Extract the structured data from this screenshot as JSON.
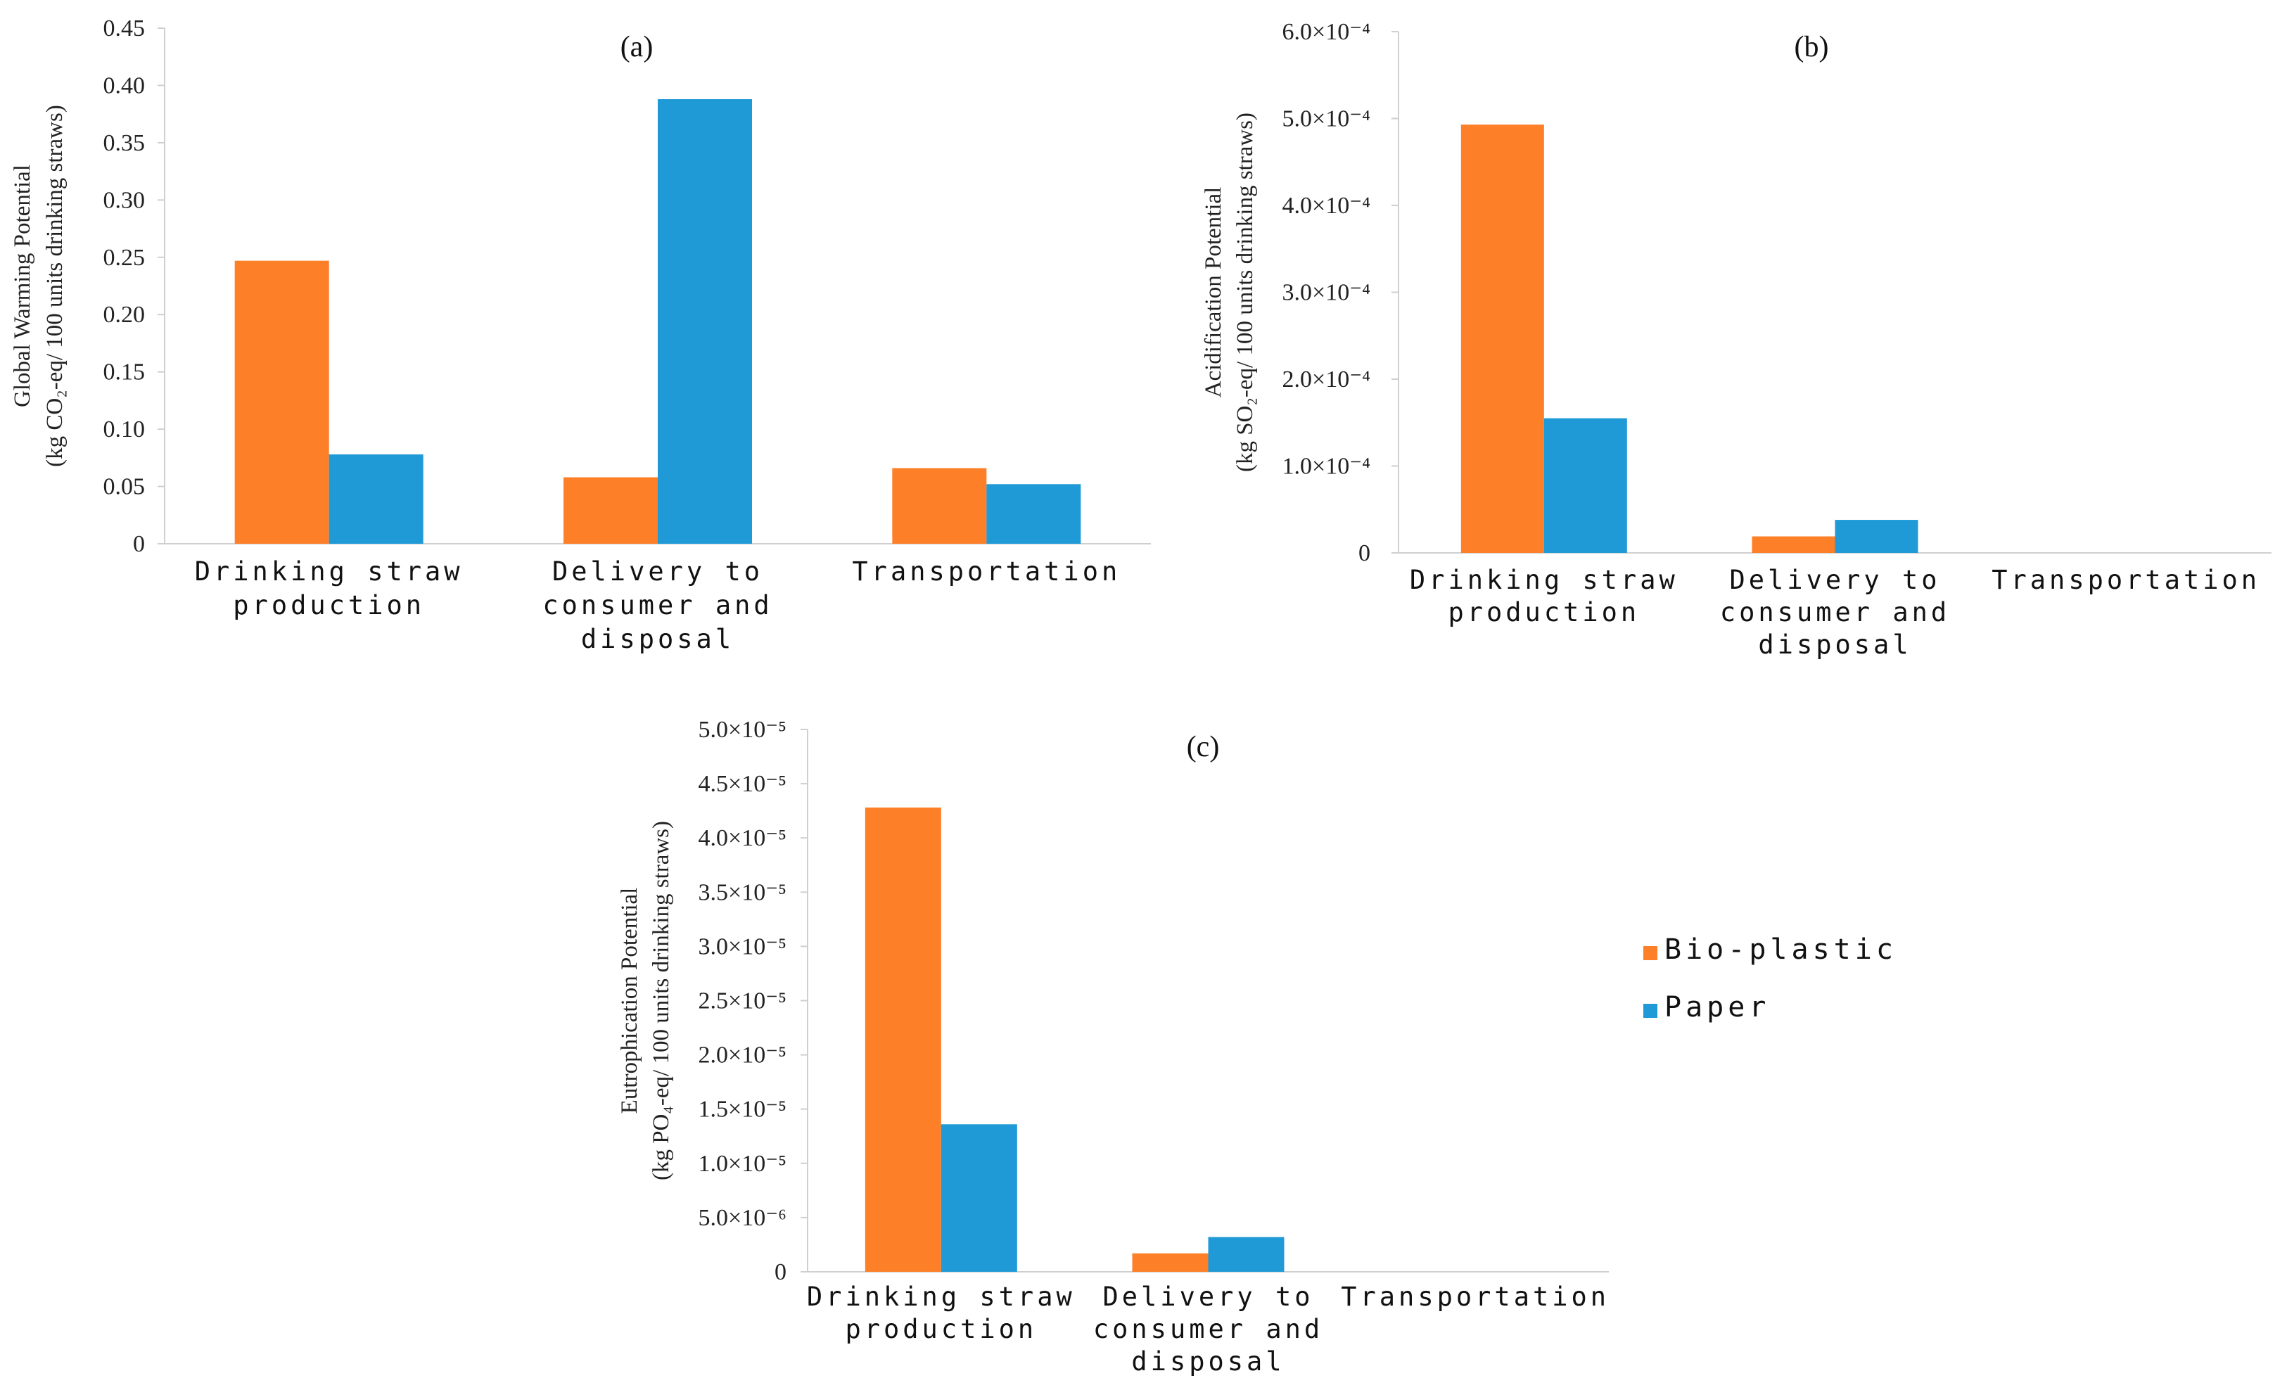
{
  "colors": {
    "bio_plastic": "#fd7f28",
    "paper": "#1f9ad7"
  },
  "legend": {
    "items": [
      {
        "label": "Bio-plastic",
        "color": "#fd7f28"
      },
      {
        "label": "Paper",
        "color": "#1f9ad7"
      }
    ]
  },
  "chart_data": [
    {
      "type": "bar",
      "title": "(a)",
      "ylabel_line1": "Global Warming Potential",
      "ylabel_line2": "(kg CO₂-eq/ 100 units drinking straws)",
      "categories": [
        [
          "Drinking straw",
          "production"
        ],
        [
          "Delivery to",
          "consumer and",
          "disposal"
        ],
        [
          "Transportation"
        ]
      ],
      "series": [
        {
          "name": "Bio-plastic",
          "values": [
            0.247,
            0.058,
            0.066
          ]
        },
        {
          "name": "Paper",
          "values": [
            0.078,
            0.388,
            0.052
          ]
        }
      ],
      "ylim": [
        0,
        0.45
      ],
      "yticks": [
        0,
        0.05,
        0.1,
        0.15,
        0.2,
        0.25,
        0.3,
        0.35,
        0.4,
        0.45
      ],
      "ytick_labels": [
        "0",
        "0.05",
        "0.10",
        "0.15",
        "0.20",
        "0.25",
        "0.30",
        "0.35",
        "0.40",
        "0.45"
      ]
    },
    {
      "type": "bar",
      "title": "(b)",
      "ylabel_line1": "Acidification Potential",
      "ylabel_line2": "(kg SO₂-eq/ 100 units drinking straws)",
      "categories": [
        [
          "Drinking straw",
          "production"
        ],
        [
          "Delivery to",
          "consumer and",
          "disposal"
        ],
        [
          "Transportation"
        ]
      ],
      "series": [
        {
          "name": "Bio-plastic",
          "values": [
            0.000493,
            1.9e-05,
            0
          ]
        },
        {
          "name": "Paper",
          "values": [
            0.000155,
            3.8e-05,
            0
          ]
        }
      ],
      "ylim": [
        0,
        0.0006
      ],
      "yticks": [
        0,
        0.0001,
        0.0002,
        0.0003,
        0.0004,
        0.0005,
        0.0006
      ],
      "ytick_labels": [
        "0",
        "1.0×10⁻⁴",
        "2.0×10⁻⁴",
        "3.0×10⁻⁴",
        "4.0×10⁻⁴",
        "5.0×10⁻⁴",
        "6.0×10⁻⁴"
      ]
    },
    {
      "type": "bar",
      "title": "(c)",
      "ylabel_line1": "Eutrophication Potential",
      "ylabel_line2": "(kg PO₄-eq/ 100 units drinking straws)",
      "categories": [
        [
          "Drinking straw",
          "production"
        ],
        [
          "Delivery to",
          "consumer and",
          "disposal"
        ],
        [
          "Transportation"
        ]
      ],
      "series": [
        {
          "name": "Bio-plastic",
          "values": [
            4.28e-05,
            1.7e-06,
            0
          ]
        },
        {
          "name": "Paper",
          "values": [
            1.36e-05,
            3.2e-06,
            0
          ]
        }
      ],
      "ylim": [
        0,
        5e-05
      ],
      "yticks": [
        0,
        5e-06,
        1e-05,
        1.5e-05,
        2e-05,
        2.5e-05,
        3e-05,
        3.5e-05,
        4e-05,
        4.5e-05,
        5e-05
      ],
      "ytick_labels": [
        "0",
        "5.0×10⁻⁶",
        "1.0×10⁻⁵",
        "1.5×10⁻⁵",
        "2.0×10⁻⁵",
        "2.5×10⁻⁵",
        "3.0×10⁻⁵",
        "3.5×10⁻⁵",
        "4.0×10⁻⁵",
        "4.5×10⁻⁵",
        "5.0×10⁻⁵"
      ]
    }
  ]
}
